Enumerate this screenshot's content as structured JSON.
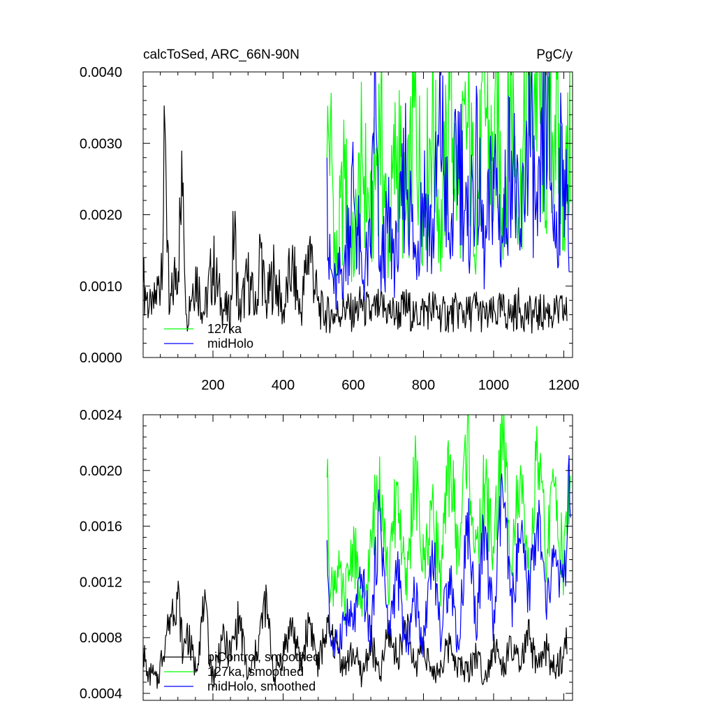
{
  "figure": {
    "title_left": "calcToSed, ARC_66N-90N",
    "title_right": "PgC/y"
  },
  "chart_data": [
    {
      "type": "line",
      "title": "calcToSed, ARC_66N-90N",
      "units": "PgC/y",
      "xlim": [
        1,
        1225
      ],
      "ylim": [
        0.0,
        0.004
      ],
      "x_ticks": [
        200,
        400,
        600,
        800,
        1000,
        1200
      ],
      "x_tick_labels": [
        "200",
        "400",
        "600",
        "800",
        "1000",
        "1200"
      ],
      "y_ticks": [
        0.0,
        0.001,
        0.002,
        0.003,
        0.004
      ],
      "y_tick_labels": [
        "0.0000",
        "0.0010",
        "0.0020",
        "0.0030",
        "0.0040"
      ],
      "legend_position": "lower-left",
      "legend": [
        {
          "label": "127ka",
          "color": "#00ff00"
        },
        {
          "label": "midHolo",
          "color": "#0000ff"
        }
      ],
      "series": [
        {
          "name": "piControl",
          "color": "#000000",
          "x": [
            1,
            25,
            50,
            65,
            75,
            100,
            115,
            125,
            150,
            175,
            200,
            225,
            250,
            260,
            275,
            300,
            325,
            335,
            350,
            375,
            400,
            425,
            450,
            475,
            500,
            520,
            550,
            575,
            600,
            625,
            650,
            675,
            700,
            725,
            750,
            775,
            800,
            825,
            850,
            875,
            900,
            925,
            950,
            975,
            1000,
            1025,
            1050,
            1075,
            1100,
            1125,
            1150,
            1175,
            1200,
            1210
          ],
          "y": [
            0.00105,
            0.0006,
            0.0011,
            0.00295,
            0.0006,
            0.0014,
            0.00245,
            0.0006,
            0.0012,
            0.0006,
            0.0013,
            0.0007,
            0.0006,
            0.00185,
            0.0006,
            0.0011,
            0.0006,
            0.00165,
            0.0007,
            0.0012,
            0.0006,
            0.0013,
            0.0006,
            0.0016,
            0.0007,
            0.0006,
            0.0006,
            0.0007,
            0.0006,
            0.00075,
            0.0006,
            0.0007,
            0.00065,
            0.0006,
            0.0007,
            0.0006,
            0.00065,
            0.0007,
            0.0006,
            0.0006,
            0.00065,
            0.0006,
            0.0007,
            0.00055,
            0.0006,
            0.00065,
            0.0006,
            0.0007,
            0.0006,
            0.0006,
            0.00065,
            0.0006,
            0.00065,
            0.0006
          ]
        },
        {
          "name": "127ka",
          "color": "#00ff00",
          "x": [
            525,
            535,
            550,
            575,
            600,
            625,
            650,
            675,
            700,
            725,
            750,
            775,
            800,
            825,
            850,
            875,
            900,
            925,
            950,
            975,
            1000,
            1005,
            1025,
            1050,
            1075,
            1100,
            1125,
            1150,
            1175,
            1200,
            1220
          ],
          "y": [
            0.0028,
            0.0033,
            0.0012,
            0.0025,
            0.0014,
            0.0028,
            0.0018,
            0.0033,
            0.0016,
            0.0031,
            0.0018,
            0.0035,
            0.0021,
            0.0034,
            0.0017,
            0.0036,
            0.0022,
            0.0033,
            0.0019,
            0.0037,
            0.0024,
            0.0039,
            0.0021,
            0.0037,
            0.0022,
            0.0038,
            0.0039,
            0.0026,
            0.0034,
            0.0022,
            0.0031
          ]
        },
        {
          "name": "midHolo",
          "color": "#0000ff",
          "x": [
            525,
            530,
            550,
            575,
            600,
            625,
            650,
            660,
            675,
            700,
            725,
            750,
            775,
            800,
            825,
            850,
            875,
            900,
            925,
            950,
            975,
            1000,
            1025,
            1050,
            1075,
            1100,
            1125,
            1150,
            1175,
            1200,
            1215
          ],
          "y": [
            0.0028,
            0.0013,
            0.0009,
            0.0014,
            0.0024,
            0.0011,
            0.0015,
            0.0038,
            0.0012,
            0.0018,
            0.0013,
            0.0028,
            0.0014,
            0.0024,
            0.0016,
            0.0033,
            0.0015,
            0.0031,
            0.0017,
            0.0027,
            0.0014,
            0.0027,
            0.0016,
            0.0031,
            0.0015,
            0.0034,
            0.0017,
            0.0036,
            0.0016,
            0.0031,
            0.0012
          ]
        }
      ]
    },
    {
      "type": "line",
      "xlim": [
        1,
        1225
      ],
      "ylim": [
        0.00035,
        0.0024
      ],
      "y_ticks": [
        0.0004,
        0.0008,
        0.0012,
        0.0016,
        0.002,
        0.0024
      ],
      "y_tick_labels": [
        "0.0004",
        "0.0008",
        "0.0012",
        "0.0016",
        "0.0020",
        "0.0024"
      ],
      "legend_position": "lower-left",
      "legend": [
        {
          "label": "piControl, smoothed",
          "color": "#000000"
        },
        {
          "label": "127ka, smoothed",
          "color": "#00ff00"
        },
        {
          "label": "midHolo, smoothed",
          "color": "#0000ff"
        }
      ],
      "series": [
        {
          "name": "piControl, smoothed",
          "color": "#000000",
          "x": [
            1,
            15,
            25,
            40,
            50,
            75,
            100,
            115,
            125,
            150,
            175,
            200,
            225,
            250,
            275,
            300,
            325,
            350,
            375,
            400,
            425,
            450,
            475,
            500,
            520,
            550,
            575,
            600,
            625,
            650,
            675,
            700,
            725,
            750,
            775,
            800,
            825,
            850,
            875,
            900,
            925,
            950,
            975,
            1000,
            1025,
            1050,
            1075,
            1100,
            1125,
            1150,
            1175,
            1200,
            1210
          ],
          "y": [
            0.00072,
            0.00048,
            0.00055,
            0.00047,
            0.0006,
            0.00095,
            0.00112,
            0.00068,
            0.00085,
            0.00058,
            0.00102,
            0.0005,
            0.00078,
            0.00068,
            0.00095,
            0.0005,
            0.0007,
            0.00106,
            0.00052,
            0.0007,
            0.0009,
            0.00058,
            0.00095,
            0.00058,
            0.00085,
            0.00075,
            0.00058,
            0.0007,
            0.00052,
            0.00078,
            0.0005,
            0.00085,
            0.00065,
            0.0009,
            0.00058,
            0.00078,
            0.00052,
            0.0006,
            0.00075,
            0.0006,
            0.00055,
            0.0007,
            0.0005,
            0.00075,
            0.00058,
            0.00072,
            0.0006,
            0.0008,
            0.00058,
            0.00072,
            0.00055,
            0.00068,
            0.00082
          ]
        },
        {
          "name": "127ka, smoothed",
          "color": "#00ff00",
          "x": [
            525,
            535,
            550,
            575,
            600,
            625,
            650,
            675,
            700,
            725,
            750,
            775,
            800,
            825,
            850,
            875,
            900,
            925,
            950,
            975,
            1000,
            1025,
            1050,
            1075,
            1100,
            1125,
            1150,
            1175,
            1200,
            1220
          ],
          "y": [
            0.00195,
            0.0011,
            0.0013,
            0.00105,
            0.0015,
            0.00095,
            0.0014,
            0.0021,
            0.00115,
            0.0019,
            0.0011,
            0.002,
            0.0013,
            0.0018,
            0.0012,
            0.0021,
            0.00135,
            0.0023,
            0.0013,
            0.0019,
            0.0014,
            0.0023,
            0.00145,
            0.0019,
            0.0012,
            0.0021,
            0.0014,
            0.0019,
            0.0013,
            0.002
          ]
        },
        {
          "name": "midHolo, smoothed",
          "color": "#0000ff",
          "x": [
            525,
            535,
            550,
            575,
            600,
            625,
            650,
            675,
            700,
            725,
            750,
            775,
            800,
            825,
            850,
            875,
            900,
            925,
            950,
            975,
            1000,
            1025,
            1050,
            1075,
            1100,
            1125,
            1150,
            1175,
            1200,
            1220
          ],
          "y": [
            0.0015,
            0.0008,
            0.0007,
            0.00095,
            0.0009,
            0.0012,
            0.0008,
            0.00175,
            0.0008,
            0.0013,
            0.0007,
            0.0011,
            0.00075,
            0.0015,
            0.0008,
            0.0013,
            0.0007,
            0.0017,
            0.0009,
            0.0016,
            0.00085,
            0.0019,
            0.001,
            0.0015,
            0.0011,
            0.0017,
            0.001,
            0.0014,
            0.0011,
            0.00205
          ]
        }
      ]
    }
  ]
}
